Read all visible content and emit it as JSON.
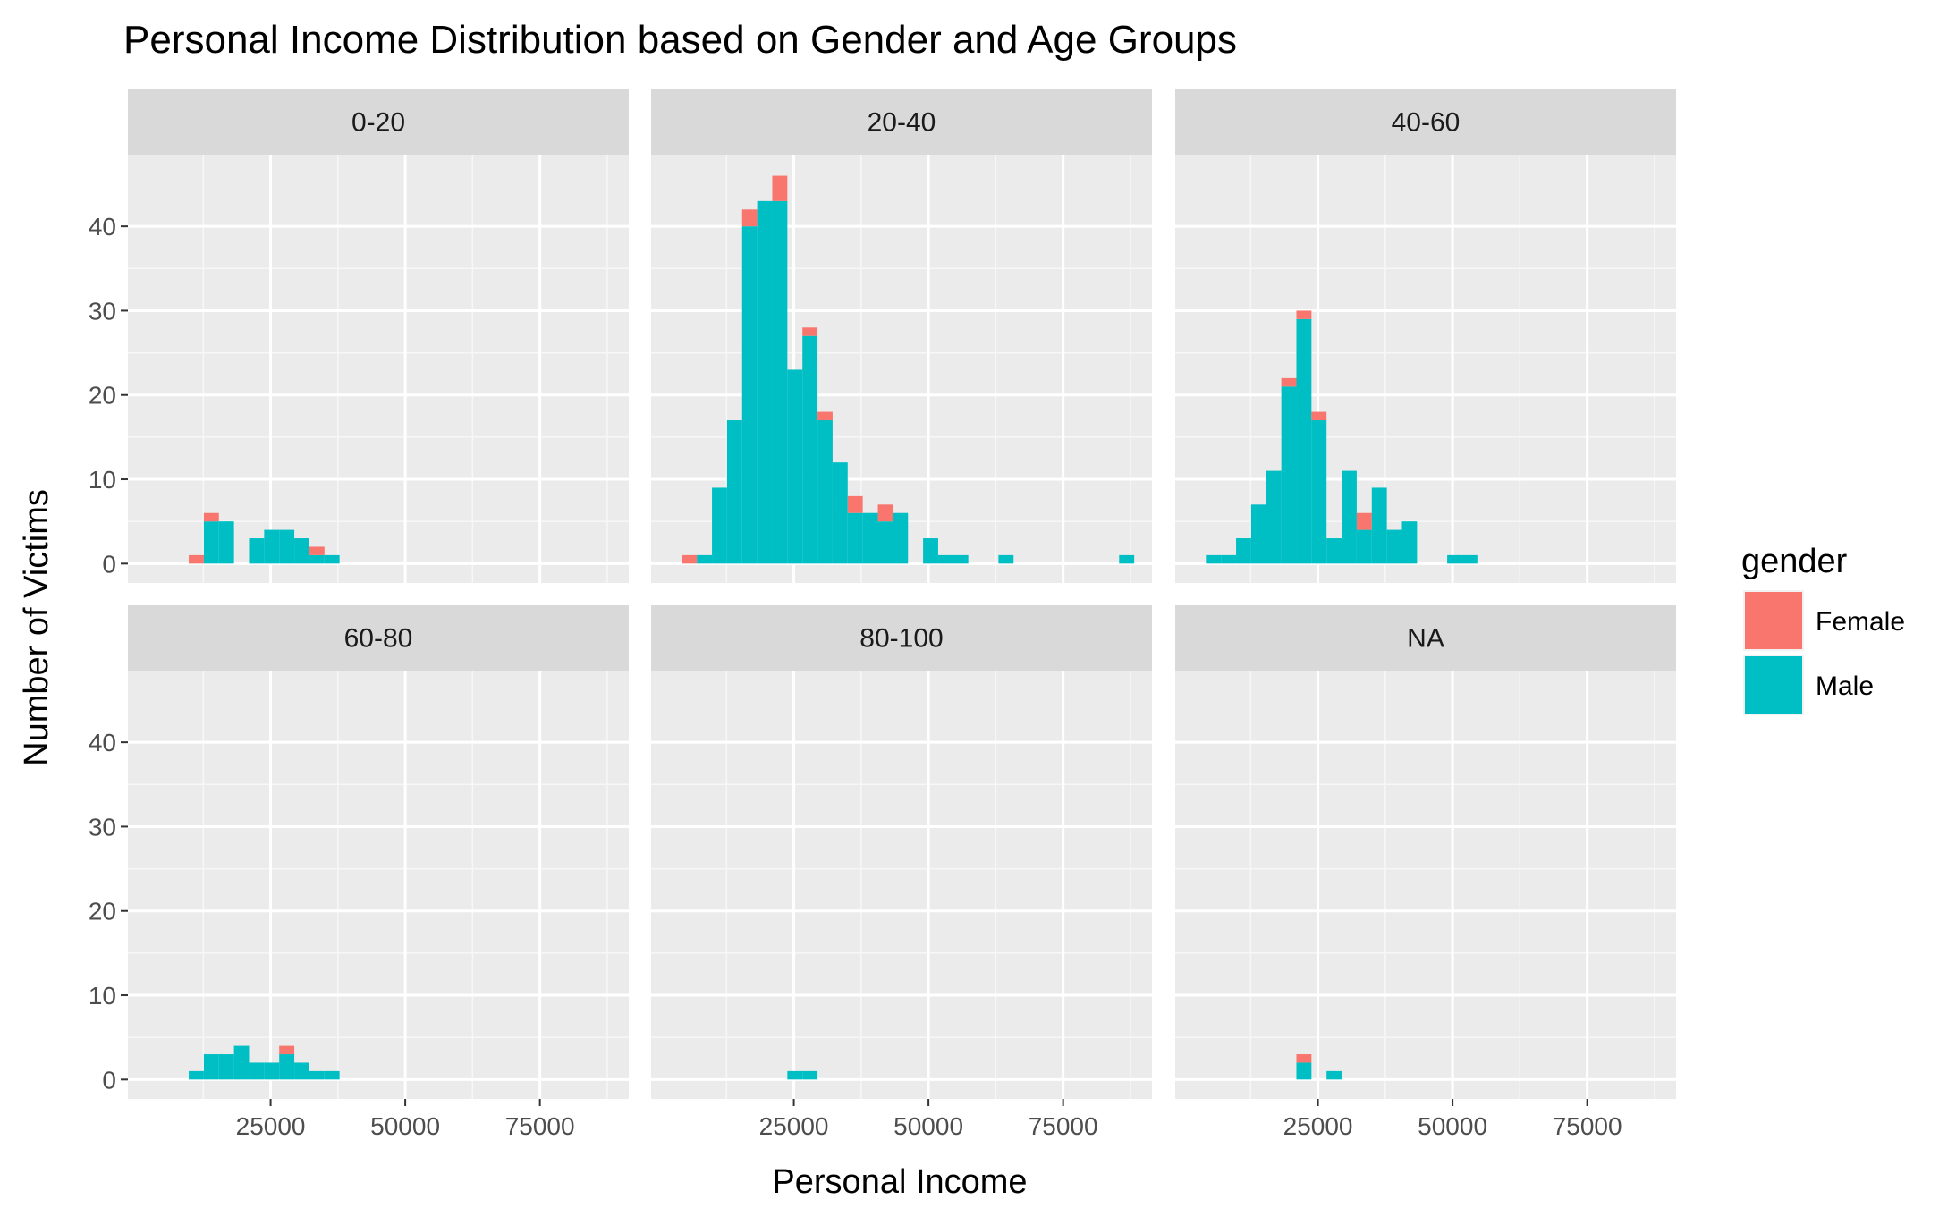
{
  "chart_data": {
    "type": "bar",
    "title": "Personal Income Distribution based on Gender and Age Groups",
    "xlabel": "Personal Income",
    "ylabel": "Number of Victims",
    "xlim": [
      -1500,
      91500
    ],
    "ylim": [
      -2.3,
      48.5
    ],
    "x_ticks": [
      25000,
      50000,
      75000
    ],
    "x_tick_labels": [
      "25000",
      "50000",
      "75000"
    ],
    "y_ticks": [
      0,
      10,
      20,
      30,
      40
    ],
    "y_tick_labels": [
      "0",
      "10",
      "20",
      "30",
      "40"
    ],
    "bin_width": 2800,
    "facet_variable": "age group",
    "stacked": true,
    "grid": true,
    "legend": {
      "title": "gender",
      "position": "right",
      "entries": [
        {
          "name": "Female",
          "color": "#F8766D"
        },
        {
          "name": "Male",
          "color": "#00BFC4"
        }
      ]
    },
    "panels": [
      {
        "label": "0-20",
        "bins": [
          {
            "x": 11200,
            "female": 1,
            "male": 0
          },
          {
            "x": 14000,
            "female": 1,
            "male": 5
          },
          {
            "x": 16800,
            "female": 0,
            "male": 5
          },
          {
            "x": 22400,
            "female": 0,
            "male": 3
          },
          {
            "x": 25200,
            "female": 0,
            "male": 4
          },
          {
            "x": 28000,
            "female": 0,
            "male": 4
          },
          {
            "x": 30800,
            "female": 0,
            "male": 3
          },
          {
            "x": 33600,
            "female": 1,
            "male": 1
          },
          {
            "x": 36400,
            "female": 0,
            "male": 1
          }
        ]
      },
      {
        "label": "20-40",
        "bins": [
          {
            "x": 5600,
            "female": 1,
            "male": 0
          },
          {
            "x": 8400,
            "female": 0,
            "male": 1
          },
          {
            "x": 11200,
            "female": 0,
            "male": 9
          },
          {
            "x": 14000,
            "female": 0,
            "male": 17
          },
          {
            "x": 16800,
            "female": 2,
            "male": 40
          },
          {
            "x": 19600,
            "female": 0,
            "male": 43
          },
          {
            "x": 22400,
            "female": 3,
            "male": 43
          },
          {
            "x": 25200,
            "female": 0,
            "male": 23
          },
          {
            "x": 28000,
            "female": 1,
            "male": 27
          },
          {
            "x": 30800,
            "female": 1,
            "male": 17
          },
          {
            "x": 33600,
            "female": 0,
            "male": 12
          },
          {
            "x": 36400,
            "female": 2,
            "male": 6
          },
          {
            "x": 39200,
            "female": 0,
            "male": 6
          },
          {
            "x": 42000,
            "female": 2,
            "male": 5
          },
          {
            "x": 44800,
            "female": 0,
            "male": 6
          },
          {
            "x": 50400,
            "female": 0,
            "male": 3
          },
          {
            "x": 53200,
            "female": 0,
            "male": 1
          },
          {
            "x": 56000,
            "female": 0,
            "male": 1
          },
          {
            "x": 64400,
            "female": 0,
            "male": 1
          },
          {
            "x": 86800,
            "female": 0,
            "male": 1
          }
        ]
      },
      {
        "label": "40-60",
        "bins": [
          {
            "x": 5600,
            "female": 0,
            "male": 1
          },
          {
            "x": 8400,
            "female": 0,
            "male": 1
          },
          {
            "x": 11200,
            "female": 0,
            "male": 3
          },
          {
            "x": 14000,
            "female": 0,
            "male": 7
          },
          {
            "x": 16800,
            "female": 0,
            "male": 11
          },
          {
            "x": 19600,
            "female": 1,
            "male": 21
          },
          {
            "x": 22400,
            "female": 1,
            "male": 29
          },
          {
            "x": 25200,
            "female": 1,
            "male": 17
          },
          {
            "x": 28000,
            "female": 0,
            "male": 3
          },
          {
            "x": 30800,
            "female": 0,
            "male": 11
          },
          {
            "x": 33600,
            "female": 2,
            "male": 4
          },
          {
            "x": 36400,
            "female": 0,
            "male": 9
          },
          {
            "x": 39200,
            "female": 0,
            "male": 4
          },
          {
            "x": 42000,
            "female": 0,
            "male": 5
          },
          {
            "x": 50400,
            "female": 0,
            "male": 1
          },
          {
            "x": 53200,
            "female": 0,
            "male": 1
          }
        ]
      },
      {
        "label": "60-80",
        "bins": [
          {
            "x": 11200,
            "female": 0,
            "male": 1
          },
          {
            "x": 14000,
            "female": 0,
            "male": 3
          },
          {
            "x": 16800,
            "female": 0,
            "male": 3
          },
          {
            "x": 19600,
            "female": 0,
            "male": 4
          },
          {
            "x": 22400,
            "female": 0,
            "male": 2
          },
          {
            "x": 25200,
            "female": 0,
            "male": 2
          },
          {
            "x": 28000,
            "female": 1,
            "male": 3
          },
          {
            "x": 30800,
            "female": 0,
            "male": 2
          },
          {
            "x": 33600,
            "female": 0,
            "male": 1
          },
          {
            "x": 36400,
            "female": 0,
            "male": 1
          }
        ]
      },
      {
        "label": "80-100",
        "bins": [
          {
            "x": 25200,
            "female": 0,
            "male": 1
          },
          {
            "x": 28000,
            "female": 0,
            "male": 1
          }
        ]
      },
      {
        "label": "NA",
        "bins": [
          {
            "x": 22400,
            "female": 1,
            "male": 2
          },
          {
            "x": 28000,
            "female": 0,
            "male": 1
          }
        ]
      }
    ]
  }
}
